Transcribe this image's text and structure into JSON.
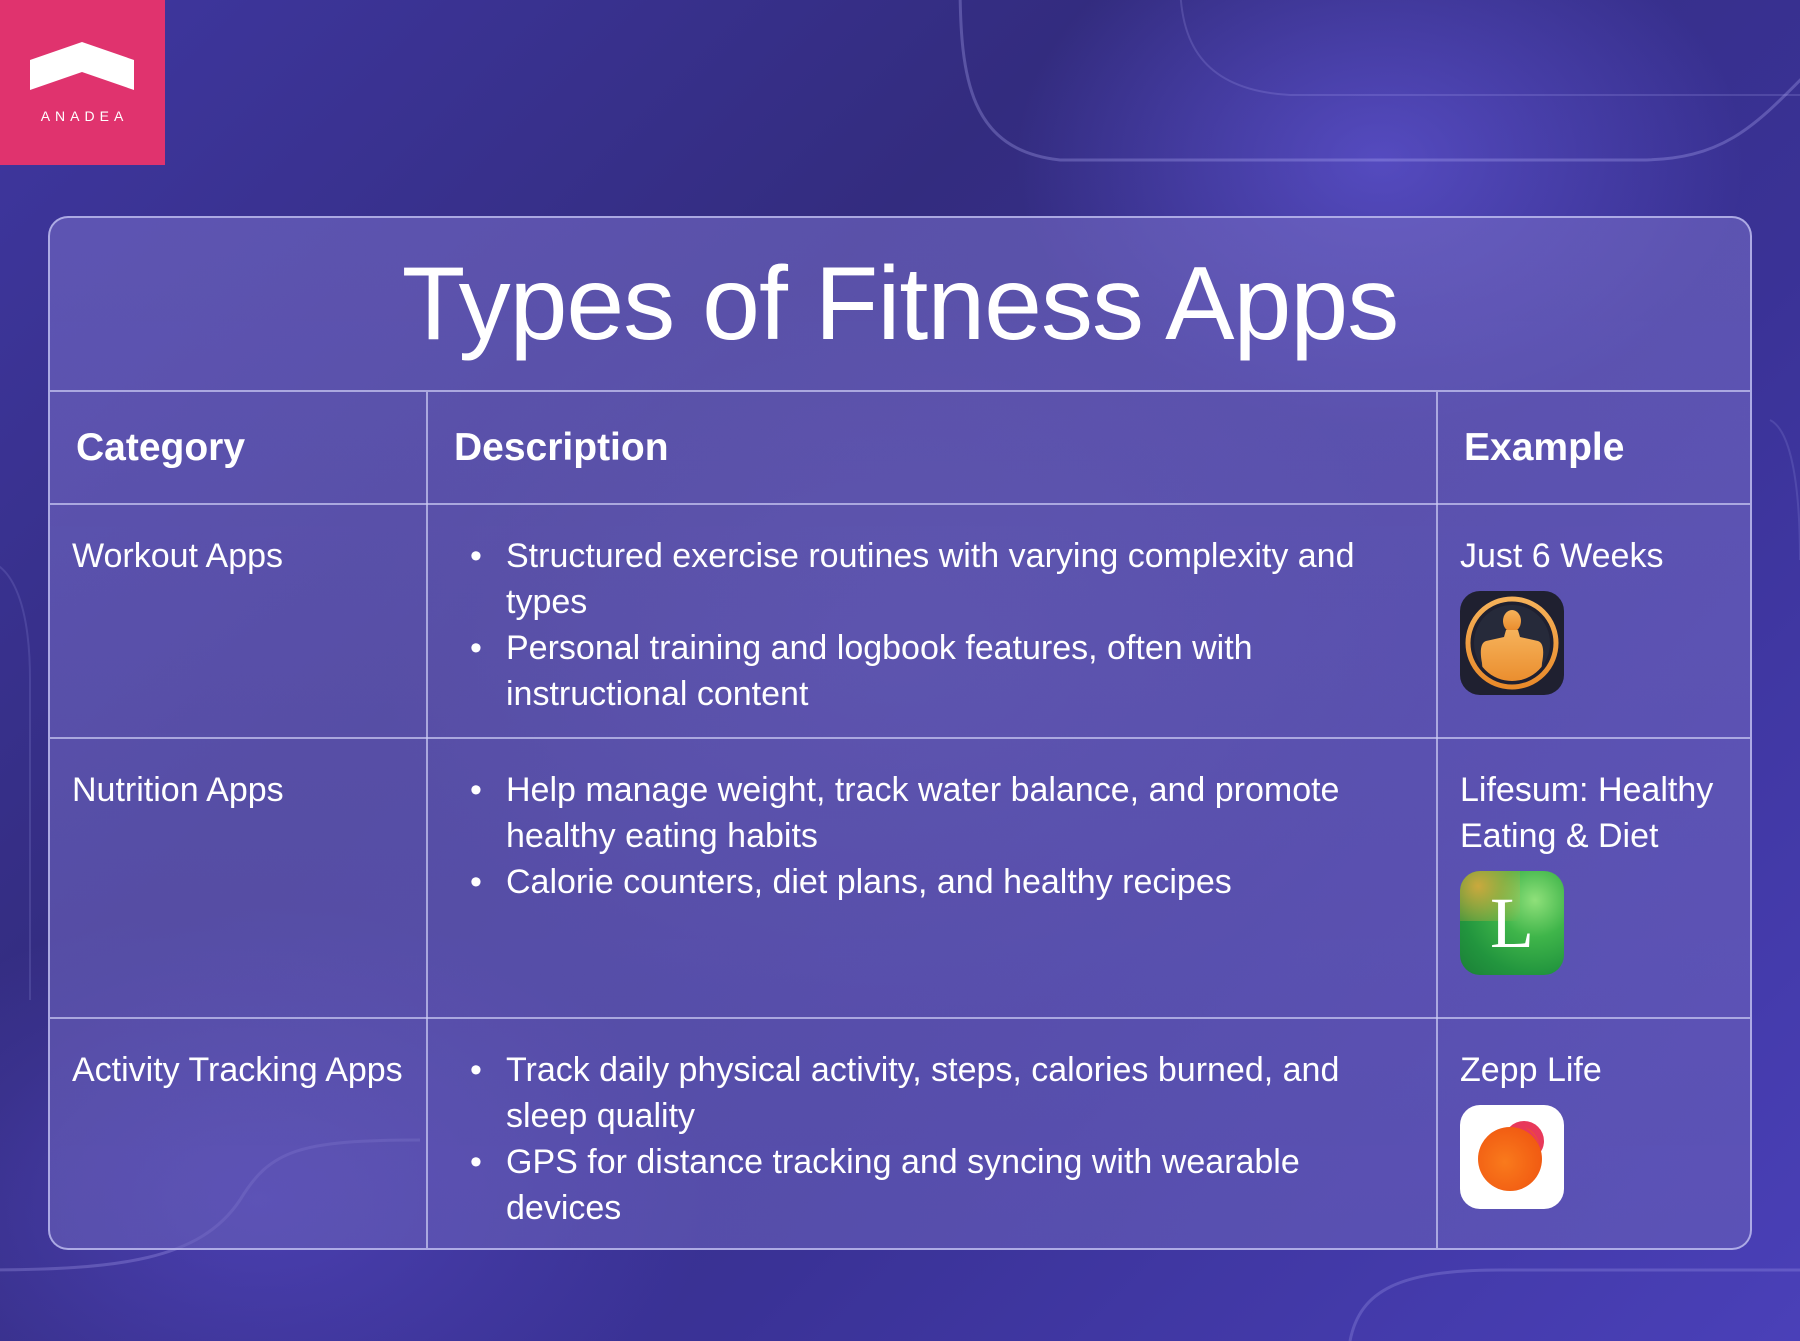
{
  "brand": {
    "name": "ANADEA",
    "color": "#e0336e"
  },
  "title": "Types of Fitness Apps",
  "table": {
    "headers": {
      "category": "Category",
      "description": "Description",
      "example": "Example"
    },
    "rows": [
      {
        "category": "Workout Apps",
        "bullets": [
          "Structured exercise routines with varying complexity and types",
          "Personal training and logbook features, often with instructional content"
        ],
        "example": "Just 6 Weeks",
        "icon": "muscle-man-icon"
      },
      {
        "category": "Nutrition Apps",
        "bullets": [
          "Help manage weight, track water balance, and promote healthy eating habits",
          "Calorie counters, diet plans, and healthy recipes"
        ],
        "example": "Lifesum: Healthy Eating & Diet",
        "icon": "lifesum-l-icon",
        "icon_letter": "L"
      },
      {
        "category": "Activity Tracking Apps",
        "bullets": [
          "Track daily physical activity, steps, calories burned, and sleep quality",
          "GPS for distance tracking and syncing with wearable devices"
        ],
        "example": "Zepp Life",
        "icon": "zepp-life-icon"
      }
    ]
  },
  "bullet_char": "•",
  "colors": {
    "background": "#3a3296",
    "card_border": "#c8c8f5",
    "text": "#ffffff"
  }
}
